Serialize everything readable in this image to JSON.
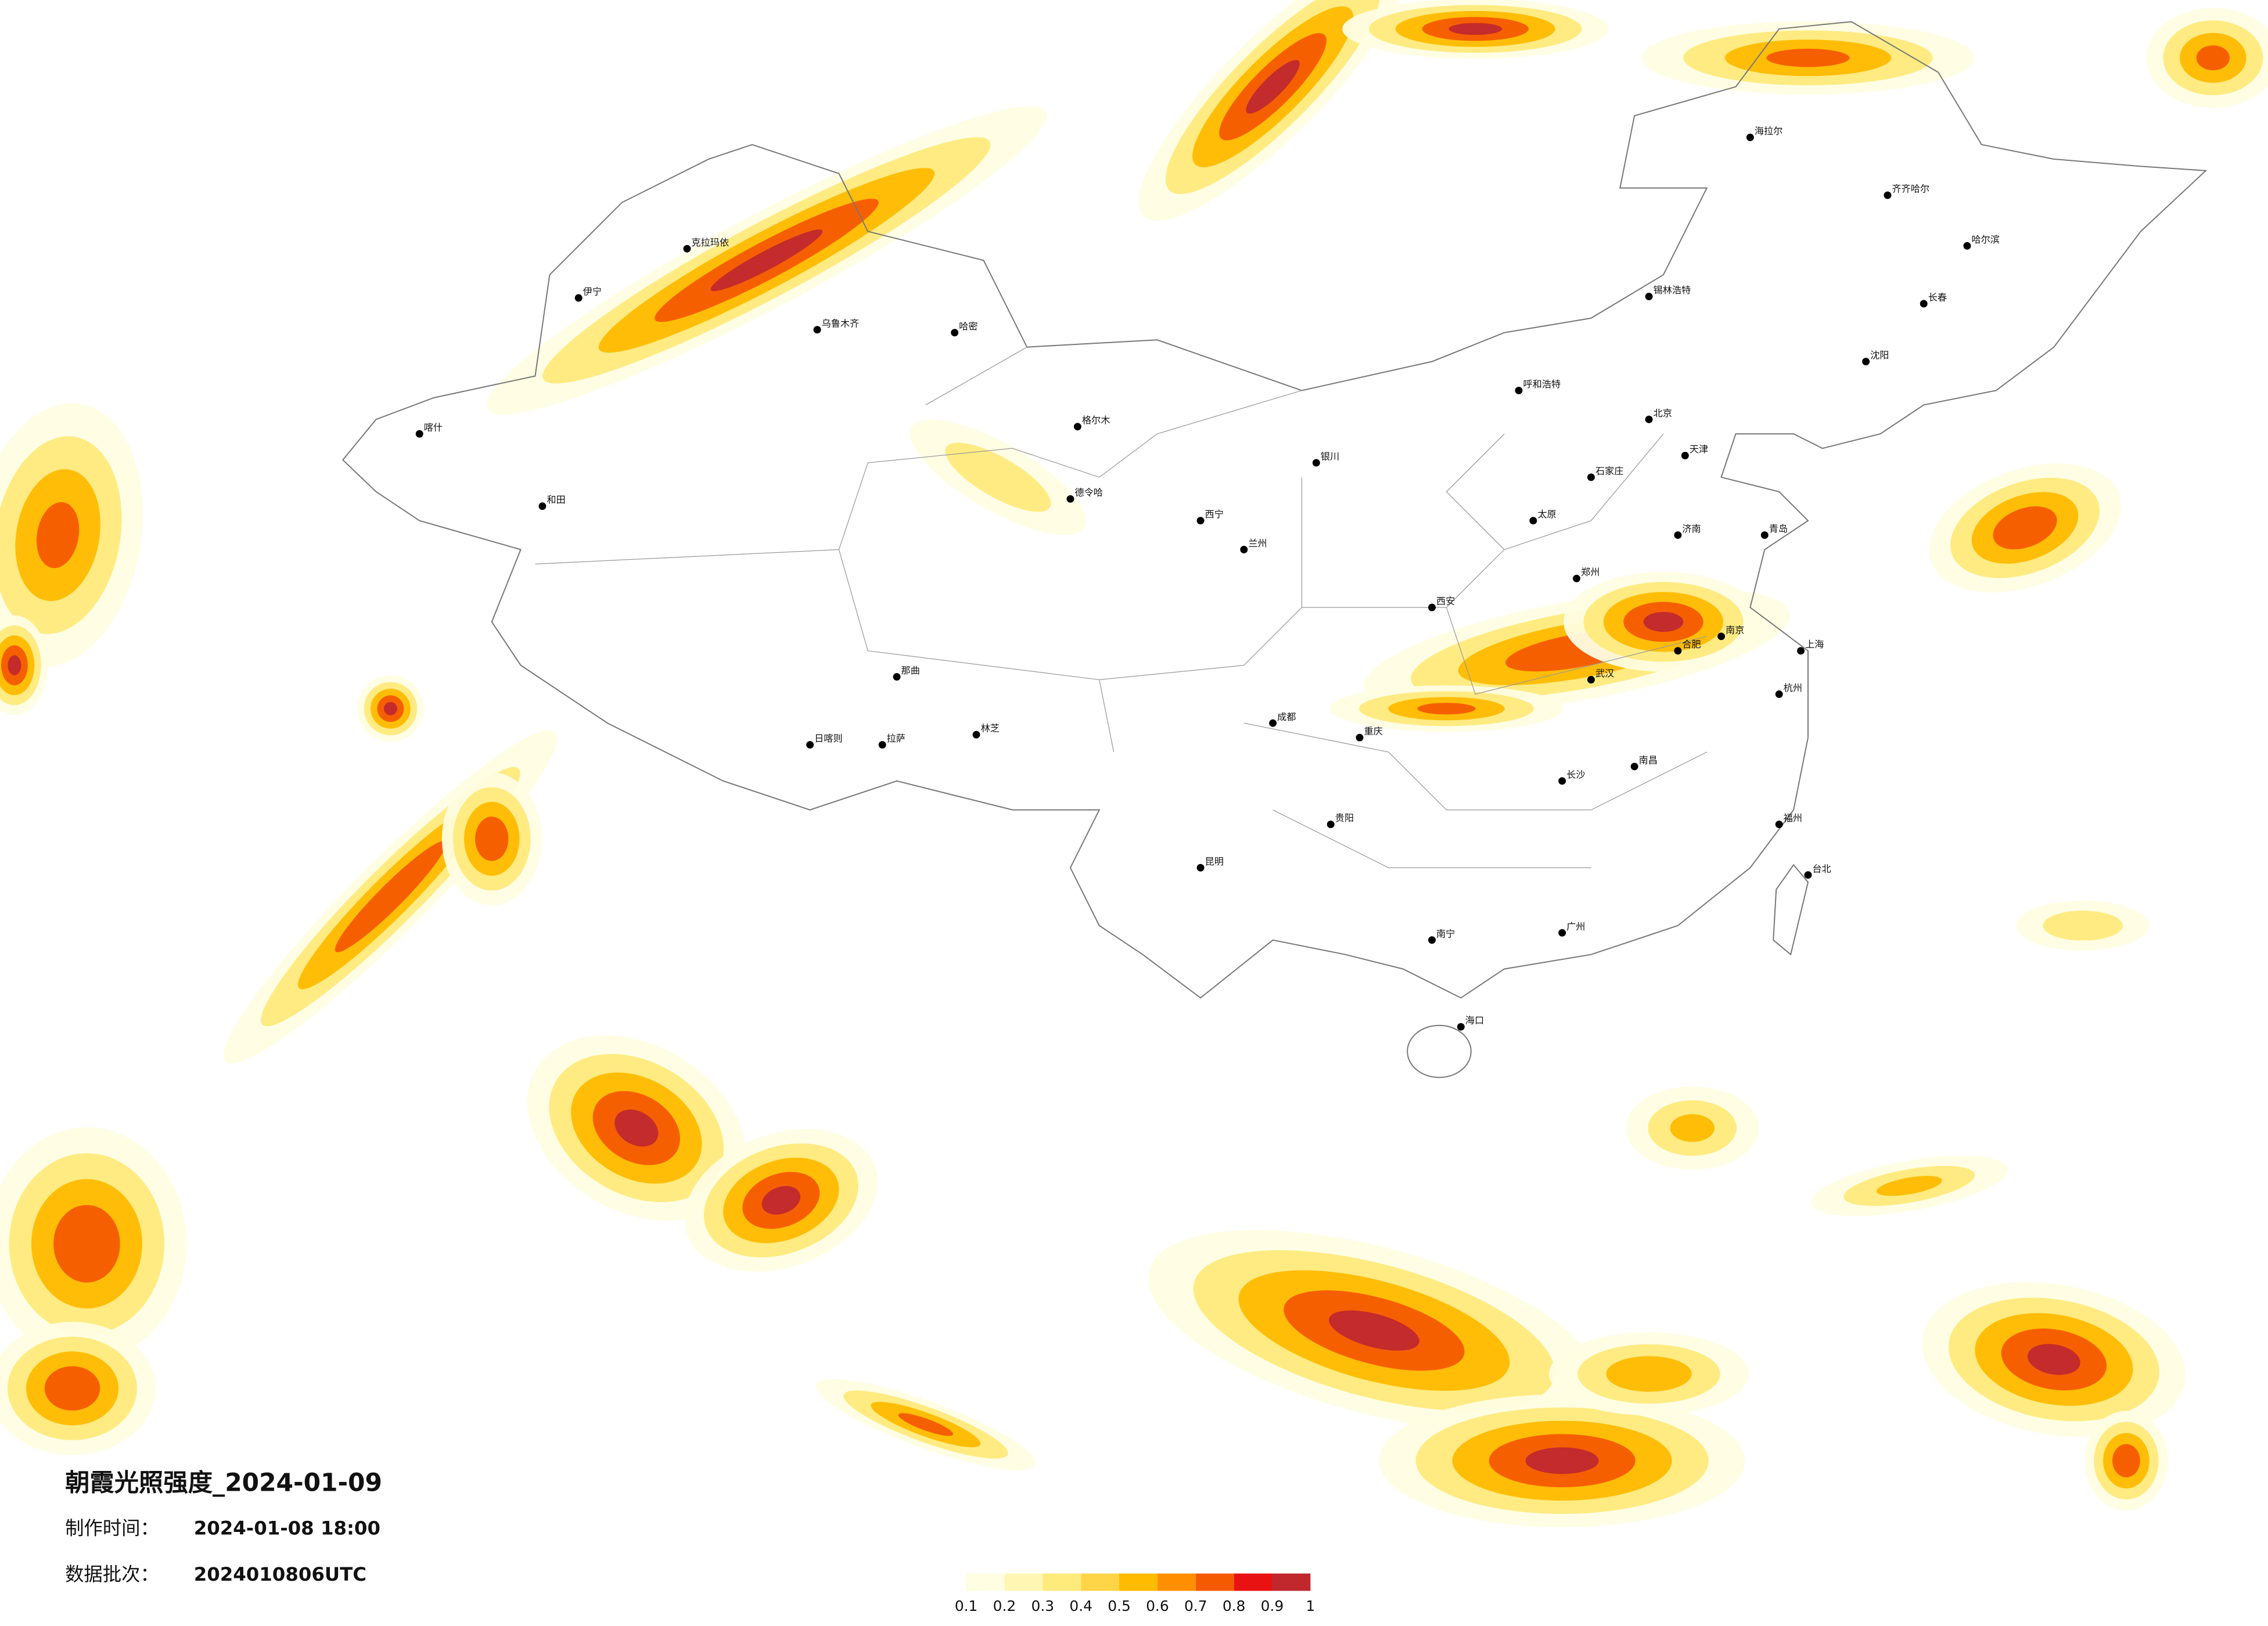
{
  "header": {
    "title": "朝霞光照强度_2024-01-09",
    "made_label": "制作时间：",
    "made_time": "2024-01-08 18:00",
    "batch_label": "数据批次：",
    "batch": "2024010806UTC"
  },
  "legend": {
    "colors": [
      "#fffde2",
      "#fff6b4",
      "#ffea7c",
      "#ffd548",
      "#ffbb00",
      "#ff8f00",
      "#f55a00",
      "#e81212",
      "#c0282e"
    ],
    "ticks": [
      0.1,
      0.2,
      0.3,
      0.4,
      0.5,
      0.6,
      0.7,
      0.8,
      0.9,
      1
    ]
  },
  "cities": [
    "克拉玛依",
    "伊宁",
    "乌鲁木齐",
    "哈密",
    "喀什",
    "和田",
    "格尔木",
    "德令哈",
    "拉萨",
    "日喀则",
    "林芝",
    "那曲",
    "呼和浩特",
    "北京",
    "天津",
    "石家庄",
    "太原",
    "郑州",
    "西安",
    "兰州",
    "西宁",
    "银川",
    "成都",
    "重庆",
    "武汉",
    "长沙",
    "南京",
    "上海",
    "杭州",
    "合肥",
    "南昌",
    "福州",
    "广州",
    "南宁",
    "昆明",
    "贵阳",
    "海口",
    "台北",
    "哈尔滨",
    "长春",
    "沈阳",
    "齐齐哈尔",
    "海拉尔",
    "锡林浩特",
    "济南",
    "青岛"
  ]
}
